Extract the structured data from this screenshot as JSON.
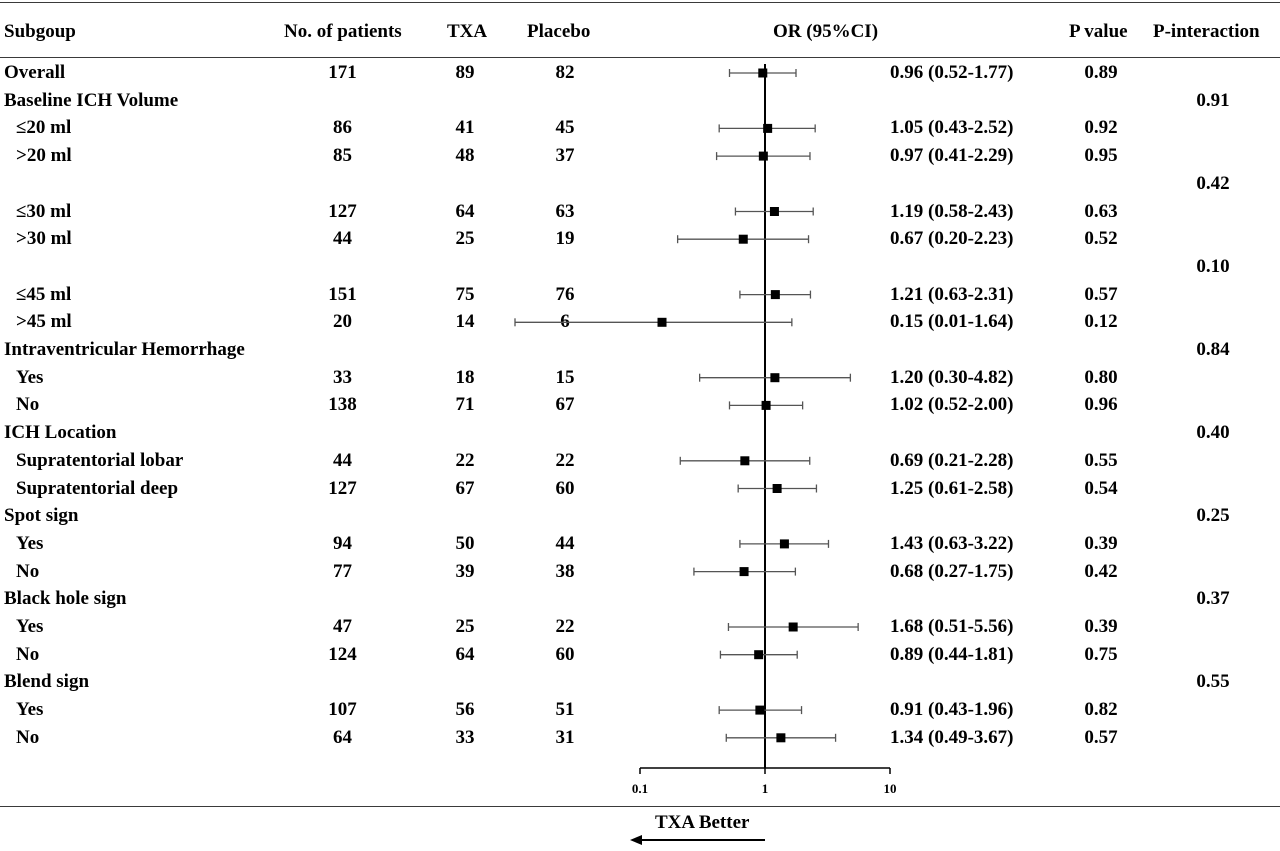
{
  "headers": {
    "subgroup": "Subgoup",
    "patients": "No. of patients",
    "txa": "TXA",
    "placebo": "Placebo",
    "or": "OR (95%CI)",
    "pvalue": "P value",
    "pinteraction": "P-interaction"
  },
  "rows": [
    {
      "label": "Overall",
      "indent": false,
      "n": "171",
      "txa": "89",
      "placebo": "82",
      "or_text": "0.96 (0.52-1.77)",
      "p": "0.89",
      "pint": ""
    },
    {
      "label": "Baseline ICH Volume",
      "indent": false,
      "n": "",
      "txa": "",
      "placebo": "",
      "or_text": "",
      "p": "",
      "pint": "0.91"
    },
    {
      "label": "≤20 ml",
      "indent": true,
      "n": "86",
      "txa": "41",
      "placebo": "45",
      "or_text": "1.05 (0.43-2.52)",
      "p": "0.92",
      "pint": ""
    },
    {
      "label": ">20 ml",
      "indent": true,
      "n": "85",
      "txa": "48",
      "placebo": "37",
      "or_text": "0.97 (0.41-2.29)",
      "p": "0.95",
      "pint": ""
    },
    {
      "label": "",
      "indent": false,
      "n": "",
      "txa": "",
      "placebo": "",
      "or_text": "",
      "p": "",
      "pint": "0.42"
    },
    {
      "label": "≤30 ml",
      "indent": true,
      "n": "127",
      "txa": "64",
      "placebo": "63",
      "or_text": "1.19 (0.58-2.43)",
      "p": "0.63",
      "pint": ""
    },
    {
      "label": ">30 ml",
      "indent": true,
      "n": "44",
      "txa": "25",
      "placebo": "19",
      "or_text": "0.67 (0.20-2.23)",
      "p": "0.52",
      "pint": ""
    },
    {
      "label": "",
      "indent": false,
      "n": "",
      "txa": "",
      "placebo": "",
      "or_text": "",
      "p": "",
      "pint": "0.10"
    },
    {
      "label": "≤45 ml",
      "indent": true,
      "n": "151",
      "txa": "75",
      "placebo": "76",
      "or_text": "1.21 (0.63-2.31)",
      "p": "0.57",
      "pint": ""
    },
    {
      "label": ">45 ml",
      "indent": true,
      "n": "20",
      "txa": "14",
      "placebo": "6",
      "or_text": "0.15 (0.01-1.64)",
      "p": "0.12",
      "pint": ""
    },
    {
      "label": "Intraventricular Hemorrhage",
      "indent": false,
      "n": "",
      "txa": "",
      "placebo": "",
      "or_text": "",
      "p": "",
      "pint": "0.84"
    },
    {
      "label": "Yes",
      "indent": true,
      "n": "33",
      "txa": "18",
      "placebo": "15",
      "or_text": "1.20 (0.30-4.82)",
      "p": "0.80",
      "pint": ""
    },
    {
      "label": "No",
      "indent": true,
      "n": "138",
      "txa": "71",
      "placebo": "67",
      "or_text": "1.02 (0.52-2.00)",
      "p": "0.96",
      "pint": ""
    },
    {
      "label": "ICH Location",
      "indent": false,
      "n": "",
      "txa": "",
      "placebo": "",
      "or_text": "",
      "p": "",
      "pint": "0.40"
    },
    {
      "label": "Supratentorial lobar",
      "indent": true,
      "n": "44",
      "txa": "22",
      "placebo": "22",
      "or_text": "0.69 (0.21-2.28)",
      "p": "0.55",
      "pint": ""
    },
    {
      "label": "Supratentorial deep",
      "indent": true,
      "n": "127",
      "txa": "67",
      "placebo": "60",
      "or_text": "1.25 (0.61-2.58)",
      "p": "0.54",
      "pint": ""
    },
    {
      "label": "Spot sign",
      "indent": false,
      "n": "",
      "txa": "",
      "placebo": "",
      "or_text": "",
      "p": "",
      "pint": "0.25"
    },
    {
      "label": "Yes",
      "indent": true,
      "n": "94",
      "txa": "50",
      "placebo": "44",
      "or_text": "1.43 (0.63-3.22)",
      "p": "0.39",
      "pint": ""
    },
    {
      "label": "No",
      "indent": true,
      "n": "77",
      "txa": "39",
      "placebo": "38",
      "or_text": "0.68 (0.27-1.75)",
      "p": "0.42",
      "pint": ""
    },
    {
      "label": "Black hole sign",
      "indent": false,
      "n": "",
      "txa": "",
      "placebo": "",
      "or_text": "",
      "p": "",
      "pint": "0.37"
    },
    {
      "label": "Yes",
      "indent": true,
      "n": "47",
      "txa": "25",
      "placebo": "22",
      "or_text": "1.68 (0.51-5.56)",
      "p": "0.39",
      "pint": ""
    },
    {
      "label": "No",
      "indent": true,
      "n": "124",
      "txa": "64",
      "placebo": "60",
      "or_text": "0.89 (0.44-1.81)",
      "p": "0.75",
      "pint": ""
    },
    {
      "label": "Blend sign",
      "indent": false,
      "n": "",
      "txa": "",
      "placebo": "",
      "or_text": "",
      "p": "",
      "pint": "0.55"
    },
    {
      "label": "Yes",
      "indent": true,
      "n": "107",
      "txa": "56",
      "placebo": "51",
      "or_text": "0.91 (0.43-1.96)",
      "p": "0.82",
      "pint": ""
    },
    {
      "label": "No",
      "indent": true,
      "n": "64",
      "txa": "33",
      "placebo": "31",
      "or_text": "1.34 (0.49-3.67)",
      "p": "0.57",
      "pint": ""
    }
  ],
  "chart_data": {
    "type": "forest",
    "scale": "log",
    "xlim": [
      0.1,
      10
    ],
    "ticks": [
      "0.1",
      "1",
      "10"
    ],
    "reference_line": 1,
    "xlabel": "TXA Better",
    "points": [
      {
        "or": 0.96,
        "lo": 0.52,
        "hi": 1.77
      },
      null,
      {
        "or": 1.05,
        "lo": 0.43,
        "hi": 2.52
      },
      {
        "or": 0.97,
        "lo": 0.41,
        "hi": 2.29
      },
      null,
      {
        "or": 1.19,
        "lo": 0.58,
        "hi": 2.43
      },
      {
        "or": 0.67,
        "lo": 0.2,
        "hi": 2.23
      },
      null,
      {
        "or": 1.21,
        "lo": 0.63,
        "hi": 2.31
      },
      {
        "or": 0.15,
        "lo": 0.01,
        "hi": 1.64
      },
      null,
      {
        "or": 1.2,
        "lo": 0.3,
        "hi": 4.82
      },
      {
        "or": 1.02,
        "lo": 0.52,
        "hi": 2.0
      },
      null,
      {
        "or": 0.69,
        "lo": 0.21,
        "hi": 2.28
      },
      {
        "or": 1.25,
        "lo": 0.61,
        "hi": 2.58
      },
      null,
      {
        "or": 1.43,
        "lo": 0.63,
        "hi": 3.22
      },
      {
        "or": 0.68,
        "lo": 0.27,
        "hi": 1.75
      },
      null,
      {
        "or": 1.68,
        "lo": 0.51,
        "hi": 5.56
      },
      {
        "or": 0.89,
        "lo": 0.44,
        "hi": 1.81
      },
      null,
      {
        "or": 0.91,
        "lo": 0.43,
        "hi": 1.96
      },
      {
        "or": 1.34,
        "lo": 0.49,
        "hi": 3.67
      }
    ]
  }
}
